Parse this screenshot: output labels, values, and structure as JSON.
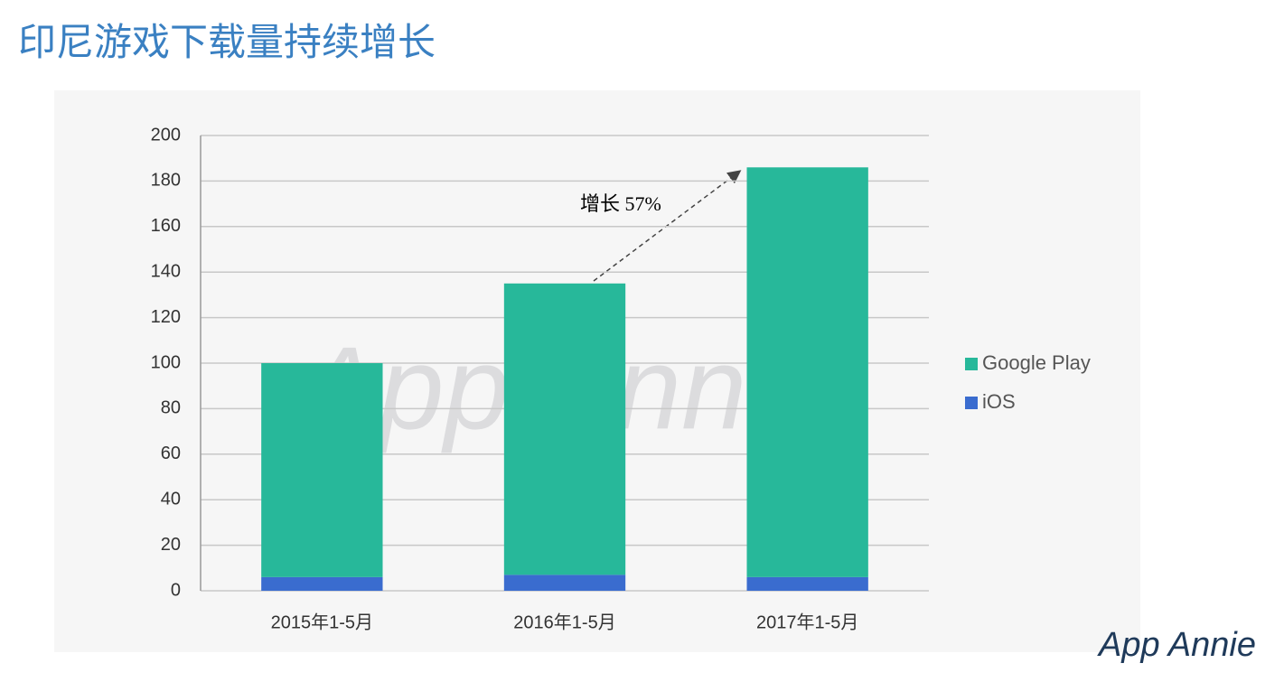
{
  "chart_data": {
    "type": "stacked_bar",
    "title": "印尼游戏下载量持续增长",
    "categories": [
      "2015年1-5月",
      "2016年1-5月",
      "2017年1-5月"
    ],
    "series": [
      {
        "name": "Google Play",
        "color": "#27b89a",
        "values": [
          94,
          128,
          180
        ]
      },
      {
        "name": "iOS",
        "color": "#3a6ccf",
        "values": [
          6,
          7,
          6
        ]
      }
    ],
    "ylim": [
      0,
      200
    ],
    "yticks": [
      0,
      20,
      40,
      60,
      80,
      100,
      120,
      140,
      160,
      180,
      200
    ],
    "grid": true,
    "annotation": "增长 57%",
    "watermark": "App Annie",
    "logo": "App Annie"
  }
}
